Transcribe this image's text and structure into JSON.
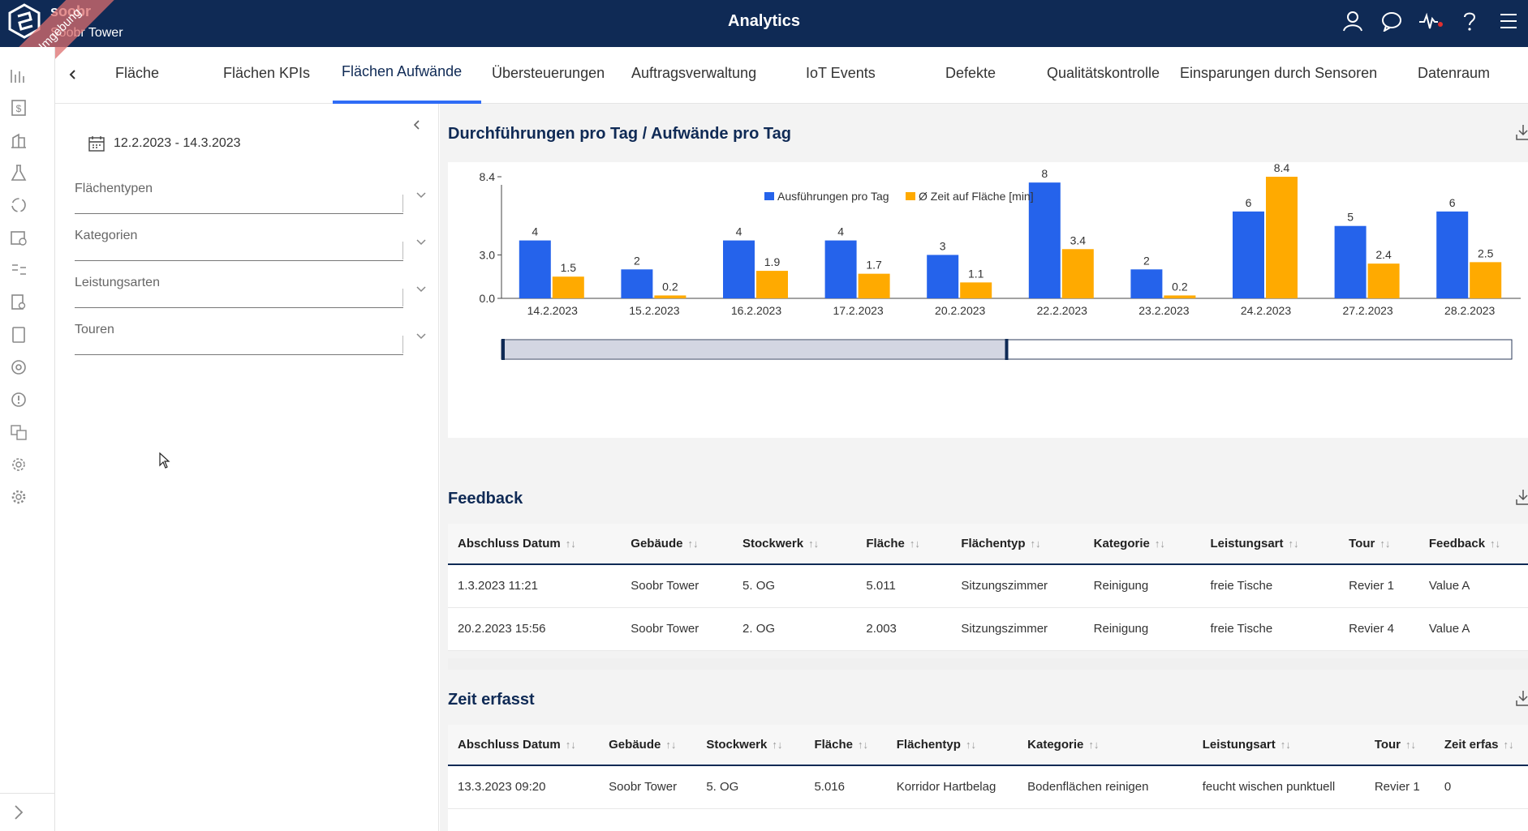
{
  "header": {
    "title": "Analytics",
    "brand": "soobr",
    "building": "Soobr Tower",
    "environment_ribbon": "INT Umgebung"
  },
  "tabs": [
    {
      "label": "Fläche",
      "active": false
    },
    {
      "label": "Flächen KPIs",
      "active": false
    },
    {
      "label": "Flächen Aufwände",
      "active": true
    },
    {
      "label": "Übersteuerungen",
      "active": false
    },
    {
      "label": "Auftragsverwaltung",
      "active": false
    },
    {
      "label": "IoT Events",
      "active": false
    },
    {
      "label": "Defekte",
      "active": false
    },
    {
      "label": "Qualitätskontrolle",
      "active": false
    },
    {
      "label": "Einsparungen durch Sensoren",
      "active": false
    },
    {
      "label": "Datenraum",
      "active": false
    }
  ],
  "filters": {
    "date_range": "12.2.2023 - 14.3.2023",
    "selects": [
      "Flächentypen",
      "Kategorien",
      "Leistungsarten",
      "Touren"
    ]
  },
  "chart_section": {
    "title": "Durchführungen pro Tag / Aufwände pro Tag"
  },
  "chart_data": {
    "type": "bar",
    "categories": [
      "14.2.2023",
      "15.2.2023",
      "16.2.2023",
      "17.2.2023",
      "20.2.2023",
      "22.2.2023",
      "23.2.2023",
      "24.2.2023",
      "27.2.2023",
      "28.2.2023"
    ],
    "series": [
      {
        "name": "Ausführungen pro Tag",
        "color": "#2563eb",
        "values": [
          4,
          2,
          4,
          4,
          3,
          8,
          2,
          6,
          5,
          6
        ]
      },
      {
        "name": "Ø Zeit auf Fläche [min]",
        "color": "#ffaa00",
        "values": [
          1.5,
          0.2,
          1.9,
          1.7,
          1.1,
          3.4,
          0.2,
          8.4,
          2.4,
          2.5
        ]
      }
    ],
    "yticks": [
      "0.0",
      "3.0",
      "8.4"
    ],
    "ylim": [
      0,
      8.4
    ],
    "legend": "top-center",
    "grid": false,
    "zoom_range": [
      0,
      0.5
    ]
  },
  "feedback": {
    "title": "Feedback",
    "columns": [
      "Abschluss Datum",
      "Gebäude",
      "Stockwerk",
      "Fläche",
      "Flächentyp",
      "Kategorie",
      "Leistungsart",
      "Tour",
      "Feedback"
    ],
    "rows": [
      [
        "1.3.2023 11:21",
        "Soobr Tower",
        "5. OG",
        "5.011",
        "Sitzungszimmer",
        "Reinigung",
        "freie Tische",
        "Revier 1",
        "Value A"
      ],
      [
        "20.2.2023 15:56",
        "Soobr Tower",
        "2. OG",
        "2.003",
        "Sitzungszimmer",
        "Reinigung",
        "freie Tische",
        "Revier 4",
        "Value A"
      ]
    ]
  },
  "zeit": {
    "title": "Zeit erfasst",
    "columns": [
      "Abschluss Datum",
      "Gebäude",
      "Stockwerk",
      "Fläche",
      "Flächentyp",
      "Kategorie",
      "Leistungsart",
      "Tour",
      "Zeit erfas"
    ],
    "rows": [
      [
        "13.3.2023 09:20",
        "Soobr Tower",
        "5. OG",
        "5.016",
        "Korridor Hartbelag",
        "Bodenflächen reinigen",
        "feucht wischen punktuell",
        "Revier 1",
        "0"
      ]
    ]
  },
  "sort_glyph": "↑↓",
  "icons": [
    "user-icon",
    "chat-icon",
    "activity-icon",
    "help-icon",
    "menu-icon",
    "download-icon",
    "calendar-icon",
    "chevron-down-icon",
    "chevron-left-icon"
  ]
}
